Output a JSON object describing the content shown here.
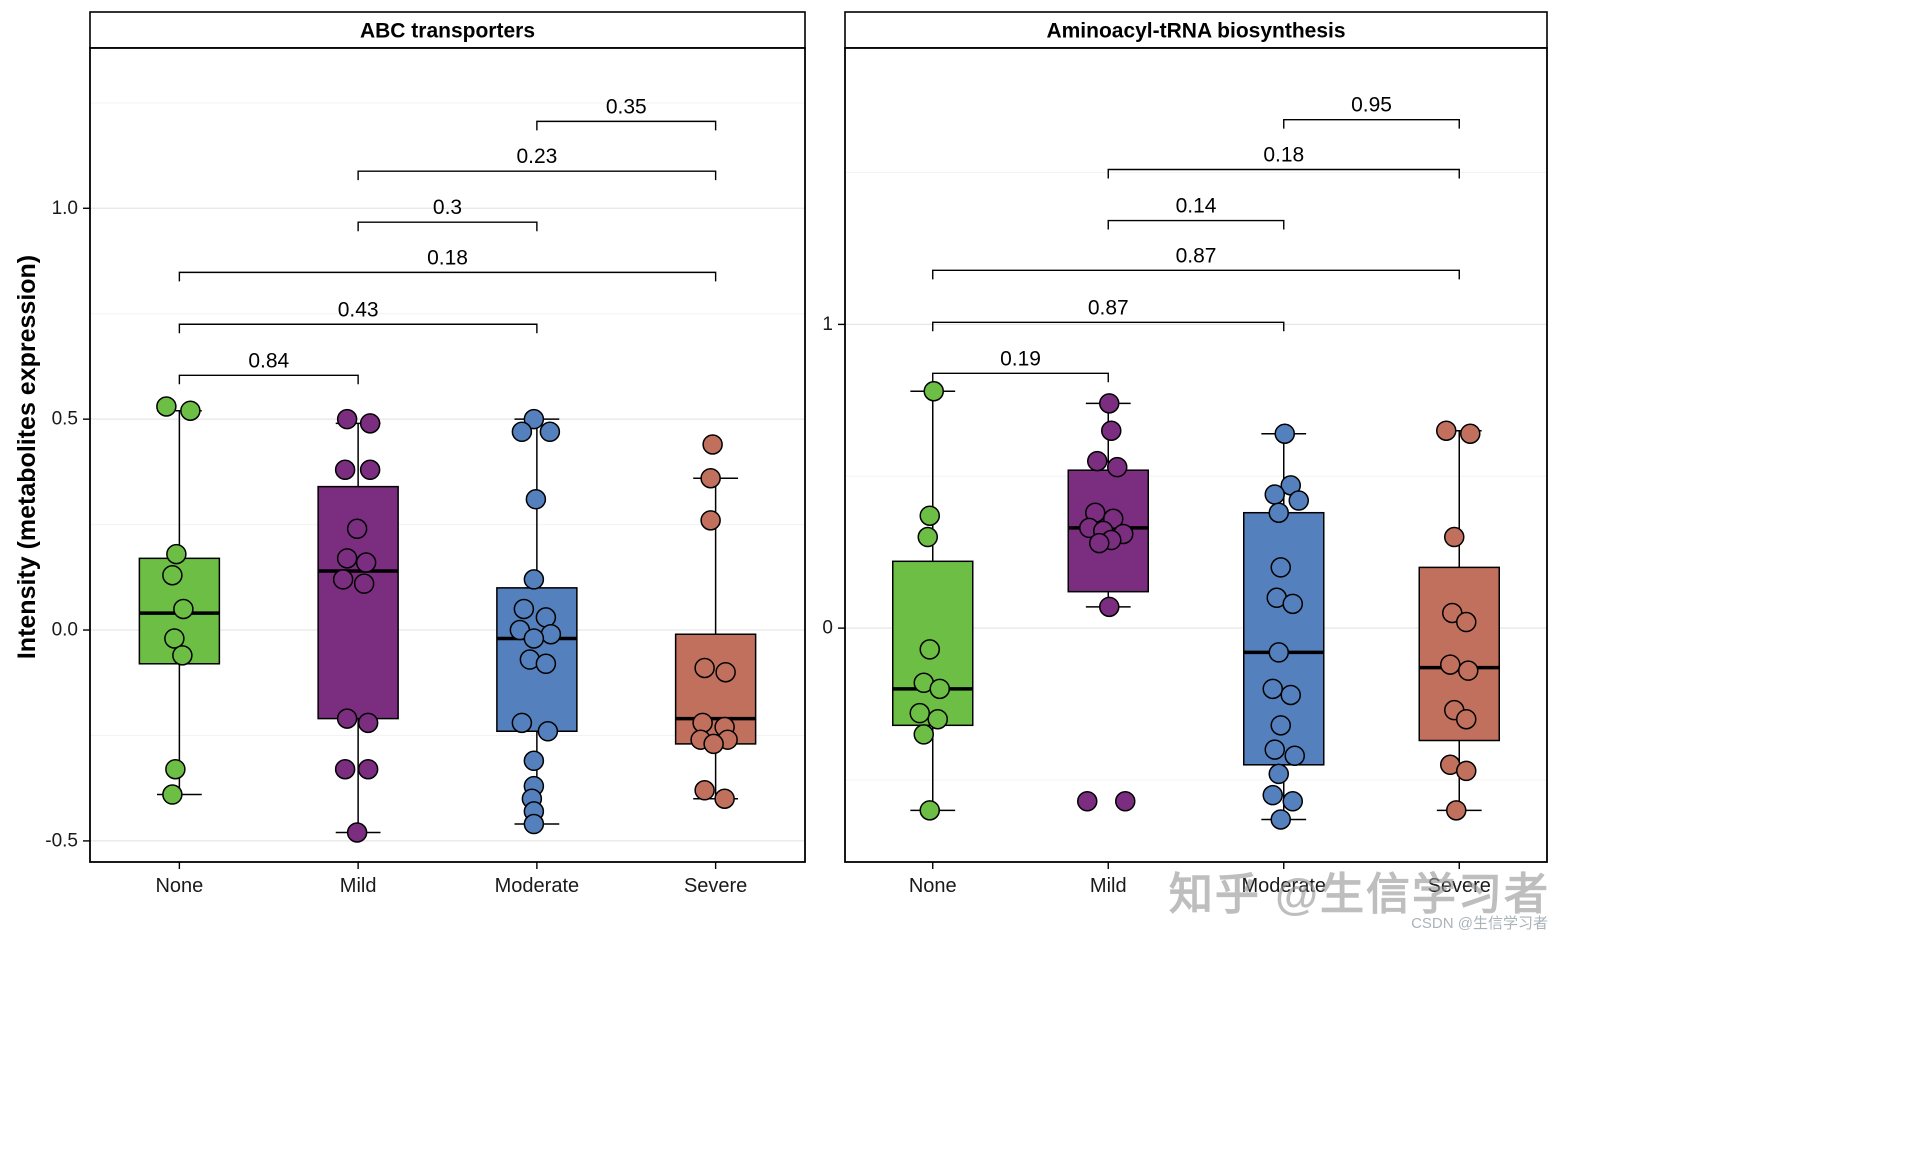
{
  "ylabel": "Intensity (metabolites expression)",
  "watermarks": {
    "zhihu": "知乎 @生信学习者",
    "csdn": "CSDN @生信学习者"
  },
  "chart_data": [
    {
      "type": "boxplot",
      "title": "ABC transporters",
      "categories": [
        "None",
        "Mild",
        "Moderate",
        "Severe"
      ],
      "colors": [
        "#6CBE45",
        "#7B2D80",
        "#5480BD",
        "#C2705E"
      ],
      "ylim": [
        -0.55,
        1.38
      ],
      "grid": true,
      "yticks": [
        {
          "v": 1.0,
          "label": "1.0"
        },
        {
          "v": 0.5,
          "label": "0.5"
        },
        {
          "v": 0.0,
          "label": "0.0"
        },
        {
          "v": -0.5,
          "label": "-0.5"
        }
      ],
      "yticks_minor": [
        1.25,
        0.75,
        0.25,
        -0.25
      ],
      "groups": [
        {
          "name": "None",
          "q1": -0.08,
          "median": 0.04,
          "q3": 0.17,
          "whisker_low": -0.39,
          "whisker_high": 0.52,
          "points": [
            [
              0.53,
              -13
            ],
            [
              0.52,
              11
            ],
            [
              0.18,
              -3
            ],
            [
              0.13,
              -7
            ],
            [
              0.05,
              4
            ],
            [
              -0.02,
              -5
            ],
            [
              -0.06,
              3
            ],
            [
              -0.33,
              -4
            ],
            [
              -0.39,
              -7
            ]
          ]
        },
        {
          "name": "Mild",
          "q1": -0.21,
          "median": 0.14,
          "q3": 0.34,
          "whisker_low": -0.48,
          "whisker_high": 0.49,
          "points": [
            [
              0.5,
              -11
            ],
            [
              0.49,
              12
            ],
            [
              0.38,
              -13
            ],
            [
              0.38,
              12
            ],
            [
              0.24,
              -1
            ],
            [
              0.17,
              -11
            ],
            [
              0.16,
              8
            ],
            [
              0.12,
              -15
            ],
            [
              0.11,
              6
            ],
            [
              -0.21,
              -11
            ],
            [
              -0.22,
              10
            ],
            [
              -0.33,
              -13
            ],
            [
              -0.33,
              10
            ],
            [
              -0.48,
              -1
            ]
          ]
        },
        {
          "name": "Moderate",
          "q1": -0.24,
          "median": -0.02,
          "q3": 0.1,
          "whisker_low": -0.46,
          "whisker_high": 0.5,
          "points": [
            [
              0.5,
              -3
            ],
            [
              0.47,
              -15
            ],
            [
              0.47,
              13
            ],
            [
              0.31,
              -1
            ],
            [
              0.12,
              -3
            ],
            [
              0.05,
              -13
            ],
            [
              0.03,
              9
            ],
            [
              0.0,
              -17
            ],
            [
              -0.01,
              14
            ],
            [
              -0.02,
              -3
            ],
            [
              -0.07,
              -7
            ],
            [
              -0.08,
              9
            ],
            [
              -0.22,
              -15
            ],
            [
              -0.24,
              11
            ],
            [
              -0.31,
              -3
            ],
            [
              -0.37,
              -3
            ],
            [
              -0.4,
              -5
            ],
            [
              -0.43,
              -3
            ],
            [
              -0.46,
              -3
            ]
          ]
        },
        {
          "name": "Severe",
          "q1": -0.27,
          "median": -0.21,
          "q3": -0.01,
          "whisker_low": -0.4,
          "whisker_high": 0.36,
          "points": [
            [
              0.44,
              -3
            ],
            [
              0.36,
              -5
            ],
            [
              0.26,
              -5
            ],
            [
              -0.09,
              -11
            ],
            [
              -0.1,
              10
            ],
            [
              -0.22,
              -13
            ],
            [
              -0.23,
              9
            ],
            [
              -0.26,
              -15
            ],
            [
              -0.26,
              12
            ],
            [
              -0.27,
              -2
            ],
            [
              -0.38,
              -11
            ],
            [
              -0.4,
              9
            ]
          ]
        }
      ],
      "comparisons": [
        {
          "a": 0,
          "b": 1,
          "label": "0.84",
          "y": 0.604
        },
        {
          "a": 0,
          "b": 2,
          "label": "0.43",
          "y": 0.725
        },
        {
          "a": 0,
          "b": 3,
          "label": "0.18",
          "y": 0.848
        },
        {
          "a": 1,
          "b": 2,
          "label": "0.3",
          "y": 0.967
        },
        {
          "a": 1,
          "b": 3,
          "label": "0.23",
          "y": 1.088
        },
        {
          "a": 2,
          "b": 3,
          "label": "0.35",
          "y": 1.206
        }
      ]
    },
    {
      "type": "boxplot",
      "title": "Aminoacyl-tRNA biosynthesis",
      "categories": [
        "None",
        "Mild",
        "Moderate",
        "Severe"
      ],
      "colors": [
        "#6CBE45",
        "#7B2D80",
        "#5480BD",
        "#C2705E"
      ],
      "ylim": [
        -0.77,
        1.91
      ],
      "grid": true,
      "yticks": [
        {
          "v": 1,
          "label": "1"
        },
        {
          "v": 0,
          "label": "0"
        }
      ],
      "yticks_minor": [
        1.5,
        0.5,
        -0.5
      ],
      "groups": [
        {
          "name": "None",
          "q1": -0.32,
          "median": -0.2,
          "q3": 0.22,
          "whisker_low": -0.6,
          "whisker_high": 0.78,
          "points": [
            [
              0.78,
              1
            ],
            [
              0.37,
              -3
            ],
            [
              0.3,
              -5
            ],
            [
              -0.07,
              -3
            ],
            [
              -0.18,
              -9
            ],
            [
              -0.2,
              7
            ],
            [
              -0.28,
              -13
            ],
            [
              -0.3,
              5
            ],
            [
              -0.35,
              -9
            ],
            [
              -0.6,
              -3
            ]
          ]
        },
        {
          "name": "Mild",
          "q1": 0.12,
          "median": 0.33,
          "q3": 0.52,
          "whisker_low": 0.07,
          "whisker_high": 0.74,
          "points": [
            [
              0.74,
              1
            ],
            [
              0.65,
              3
            ],
            [
              0.55,
              -11
            ],
            [
              0.53,
              9
            ],
            [
              0.38,
              -13
            ],
            [
              0.36,
              5
            ],
            [
              0.33,
              -19
            ],
            [
              0.32,
              -5
            ],
            [
              0.31,
              15
            ],
            [
              0.29,
              3
            ],
            [
              0.28,
              -9
            ],
            [
              0.07,
              1
            ],
            [
              -0.57,
              -21
            ],
            [
              -0.57,
              17
            ]
          ]
        },
        {
          "name": "Moderate",
          "q1": -0.45,
          "median": -0.08,
          "q3": 0.38,
          "whisker_low": -0.63,
          "whisker_high": 0.64,
          "points": [
            [
              0.64,
              1
            ],
            [
              0.47,
              7
            ],
            [
              0.44,
              -9
            ],
            [
              0.42,
              15
            ],
            [
              0.38,
              -5
            ],
            [
              0.2,
              -3
            ],
            [
              0.1,
              -7
            ],
            [
              0.08,
              9
            ],
            [
              -0.08,
              -5
            ],
            [
              -0.2,
              -11
            ],
            [
              -0.22,
              7
            ],
            [
              -0.32,
              -3
            ],
            [
              -0.4,
              -9
            ],
            [
              -0.42,
              11
            ],
            [
              -0.48,
              -5
            ],
            [
              -0.55,
              -11
            ],
            [
              -0.57,
              9
            ],
            [
              -0.63,
              -3
            ]
          ]
        },
        {
          "name": "Severe",
          "q1": -0.37,
          "median": -0.13,
          "q3": 0.2,
          "whisker_low": -0.6,
          "whisker_high": 0.65,
          "points": [
            [
              0.65,
              -13
            ],
            [
              0.64,
              11
            ],
            [
              0.3,
              -5
            ],
            [
              0.05,
              -7
            ],
            [
              0.02,
              7
            ],
            [
              -0.12,
              -9
            ],
            [
              -0.14,
              9
            ],
            [
              -0.27,
              -5
            ],
            [
              -0.3,
              7
            ],
            [
              -0.45,
              -9
            ],
            [
              -0.47,
              7
            ],
            [
              -0.6,
              -3
            ]
          ]
        }
      ],
      "comparisons": [
        {
          "a": 0,
          "b": 1,
          "label": "0.19",
          "y": 0.839
        },
        {
          "a": 0,
          "b": 2,
          "label": "0.87",
          "y": 1.007
        },
        {
          "a": 0,
          "b": 3,
          "label": "0.87",
          "y": 1.178
        },
        {
          "a": 1,
          "b": 2,
          "label": "0.14",
          "y": 1.342
        },
        {
          "a": 1,
          "b": 3,
          "label": "0.18",
          "y": 1.51
        },
        {
          "a": 2,
          "b": 3,
          "label": "0.95",
          "y": 1.674
        }
      ]
    }
  ]
}
